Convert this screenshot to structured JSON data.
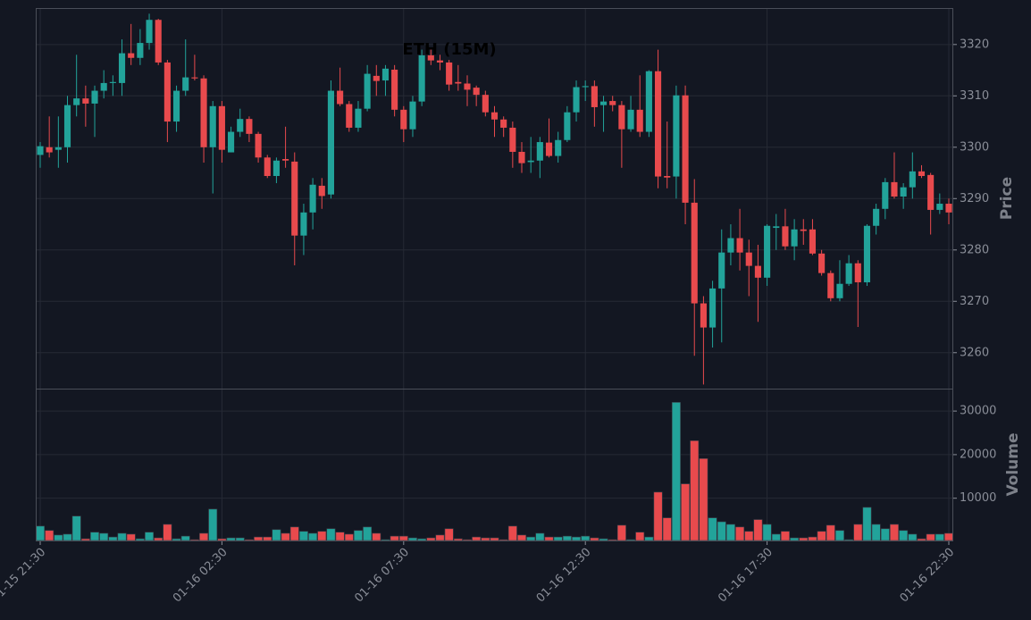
{
  "chart_data": [
    {
      "type": "candlestick",
      "title": "ETH (15M)",
      "ylabel": "Price",
      "up_color": "#22a39a",
      "down_color": "#e84a4d",
      "grid": true,
      "categories": [
        "01-15 21:30",
        null,
        null,
        null,
        null,
        null,
        null,
        null,
        null,
        null,
        null,
        null,
        null,
        null,
        null,
        null,
        null,
        null,
        null,
        null,
        "01-16 02:30",
        null,
        null,
        null,
        null,
        null,
        null,
        null,
        null,
        null,
        null,
        null,
        null,
        null,
        null,
        null,
        null,
        null,
        null,
        null,
        "01-16 07:30",
        null,
        null,
        null,
        null,
        null,
        null,
        null,
        null,
        null,
        null,
        null,
        null,
        null,
        null,
        null,
        null,
        null,
        null,
        null,
        "01-16 12:30",
        null,
        null,
        null,
        null,
        null,
        null,
        null,
        null,
        null,
        null,
        null,
        null,
        null,
        null,
        null,
        null,
        null,
        null,
        null,
        "01-16 17:30",
        null,
        null,
        null,
        null,
        null,
        null,
        null,
        null,
        null,
        null,
        null,
        null,
        null,
        null,
        null,
        null,
        null,
        null,
        null,
        "01-16 22:30"
      ],
      "open": [
        3298.5,
        3300,
        3299.5,
        3300,
        3308.2,
        3309.5,
        3308.5,
        3311,
        3312.5,
        3312.5,
        3318.3,
        3317.4,
        3320.3,
        3324.8,
        3316.5,
        3305,
        3311,
        3313.6,
        3313.4,
        3300,
        3308,
        3299,
        3303,
        3305.5,
        3302.6,
        3298,
        3294.4,
        3297.7,
        3297.2,
        3282.8,
        3287.3,
        3292.5,
        3290.8,
        3311,
        3308.4,
        3303.8,
        3307.5,
        3313.9,
        3313,
        3315.1,
        3307.3,
        3303.5,
        3308.9,
        3317.9,
        3316.9,
        3316.5,
        3312.7,
        3312.4,
        3311.6,
        3310.2,
        3306.8,
        3305.4,
        3303.8,
        3299.1,
        3297.1,
        3297.4,
        3300.9,
        3298.3,
        3301.4,
        3306.8,
        3311.7,
        3311.9,
        3308.2,
        3309,
        3308.2,
        3303.5,
        3307.3,
        3303,
        3314.8,
        3294.4,
        3294.3,
        3310.1,
        3289.2,
        3269.6,
        3264.9,
        3272.5,
        3279.5,
        3282.3,
        3279.5,
        3276.9,
        3274.6,
        3284.3,
        3284.6,
        3280.7,
        3284,
        3284,
        3279.3,
        3275.5,
        3270.6,
        3273.4,
        3277.4,
        3273.7,
        3284.7,
        3288,
        3293.2,
        3290.4,
        3292.2,
        3295.3,
        3294.6,
        3287.8,
        3289
      ],
      "high": [
        3301,
        3306,
        3306,
        3310,
        3318,
        3312,
        3312,
        3315,
        3314,
        3321,
        3324,
        3323,
        3326,
        3325,
        3317,
        3312,
        3321,
        3318,
        3314,
        3309,
        3309,
        3304,
        3307.5,
        3306,
        3303,
        3298.5,
        3298,
        3304,
        3299,
        3289,
        3294,
        3294,
        3313,
        3315.5,
        3309,
        3309,
        3316,
        3316,
        3316,
        3316,
        3308,
        3310,
        3319,
        3319,
        3318,
        3317,
        3316,
        3314,
        3312,
        3311,
        3308,
        3306,
        3305,
        3301,
        3302,
        3302,
        3305.6,
        3303,
        3308,
        3313,
        3313,
        3313,
        3310,
        3310,
        3309,
        3310,
        3314,
        3315,
        3319,
        3305,
        3312,
        3312,
        3293.8,
        3271,
        3274,
        3284,
        3285,
        3288,
        3282,
        3281,
        3285,
        3287,
        3288,
        3286,
        3286,
        3286,
        3280,
        3276,
        3278,
        3279,
        3278,
        3285,
        3289,
        3294,
        3299,
        3293,
        3299,
        3296.5,
        3295,
        3291,
        3290
      ],
      "low": [
        3296,
        3298,
        3296,
        3297,
        3306,
        3304,
        3302,
        3309.5,
        3310,
        3310,
        3316,
        3316,
        3319,
        3316,
        3301,
        3303,
        3310,
        3313,
        3297,
        3291,
        3297,
        3299,
        3302,
        3301,
        3297,
        3294,
        3293,
        3296,
        3277,
        3279,
        3284,
        3288,
        3290,
        3308,
        3303,
        3303,
        3307,
        3310,
        3310,
        3306,
        3301,
        3302,
        3308,
        3316,
        3315,
        3311,
        3311,
        3308,
        3308,
        3306,
        3302,
        3302,
        3296,
        3295,
        3295,
        3294,
        3298,
        3297,
        3301,
        3305,
        3309,
        3304,
        3303,
        3307,
        3296,
        3303,
        3302,
        3302,
        3292,
        3292,
        3290,
        3285,
        3259.4,
        3253.8,
        3261,
        3262,
        3277,
        3276,
        3271,
        3266,
        3273,
        3280,
        3280,
        3278,
        3281,
        3279,
        3275,
        3270,
        3270,
        3273,
        3265,
        3273,
        3283,
        3286,
        3290,
        3288,
        3290,
        3294,
        3283,
        3287,
        3285
      ],
      "close": [
        3300.2,
        3299,
        3300,
        3308.2,
        3309.5,
        3308.5,
        3311,
        3312.5,
        3312.7,
        3318.3,
        3317.4,
        3320.3,
        3324.8,
        3316.5,
        3305,
        3311,
        3313.6,
        3313.4,
        3300,
        3308,
        3299.5,
        3303,
        3305.5,
        3302.6,
        3298,
        3294.4,
        3297.4,
        3297.4,
        3282.8,
        3287.3,
        3292.7,
        3290.5,
        3311,
        3308.4,
        3303.8,
        3307.5,
        3314.3,
        3312.9,
        3315.3,
        3307.3,
        3303.5,
        3308.9,
        3317.9,
        3316.9,
        3316.5,
        3312.2,
        3312.4,
        3311.2,
        3310.2,
        3306.8,
        3305.4,
        3303.8,
        3299.1,
        3296.9,
        3297.4,
        3301,
        3298.3,
        3301.4,
        3306.8,
        3311.7,
        3311.9,
        3307.8,
        3308.9,
        3308.2,
        3303.5,
        3307.3,
        3303,
        3314.8,
        3294.3,
        3294.1,
        3310.1,
        3289.2,
        3269.6,
        3264.9,
        3272.5,
        3279.5,
        3282.3,
        3279.5,
        3276.9,
        3274.6,
        3284.7,
        3284.6,
        3280.7,
        3284,
        3283.7,
        3279.3,
        3275.5,
        3270.6,
        3273.4,
        3277.4,
        3273.7,
        3284.7,
        3288,
        3293.2,
        3290.4,
        3292.2,
        3295.3,
        3294.4,
        3287.8,
        3289,
        3287.3
      ],
      "ylim": [
        3253,
        3327.1
      ],
      "yticks": [
        3260,
        3270,
        3280,
        3290,
        3300,
        3310,
        3320
      ]
    },
    {
      "type": "bar",
      "ylabel": "Volume",
      "grid": true,
      "values": [
        3600,
        2600,
        1550,
        1750,
        5900,
        700,
        2200,
        1950,
        1100,
        1950,
        1750,
        700,
        2200,
        900,
        4000,
        700,
        1300,
        500,
        1950,
        7500,
        700,
        900,
        900,
        500,
        1100,
        1100,
        2800,
        1950,
        3400,
        2400,
        1950,
        2400,
        3000,
        2200,
        1750,
        2600,
        3400,
        1950,
        500,
        1300,
        1300,
        900,
        700,
        900,
        1550,
        3000,
        700,
        500,
        1100,
        900,
        900,
        500,
        3600,
        1550,
        1100,
        1950,
        1100,
        1100,
        1300,
        1100,
        1300,
        900,
        700,
        500,
        3800,
        500,
        2200,
        1100,
        11400,
        5500,
        32000,
        13300,
        23200,
        19100,
        5500,
        4600,
        4000,
        3400,
        2400,
        5100,
        4000,
        1750,
        2400,
        900,
        900,
        1100,
        2400,
        3800,
        2600,
        500,
        4000,
        7900,
        4000,
        3000,
        4000,
        2600,
        1750,
        700,
        1750,
        1750,
        1950
      ],
      "ylim": [
        300,
        35150
      ],
      "yticks": [
        10000,
        20000,
        30000
      ]
    }
  ]
}
